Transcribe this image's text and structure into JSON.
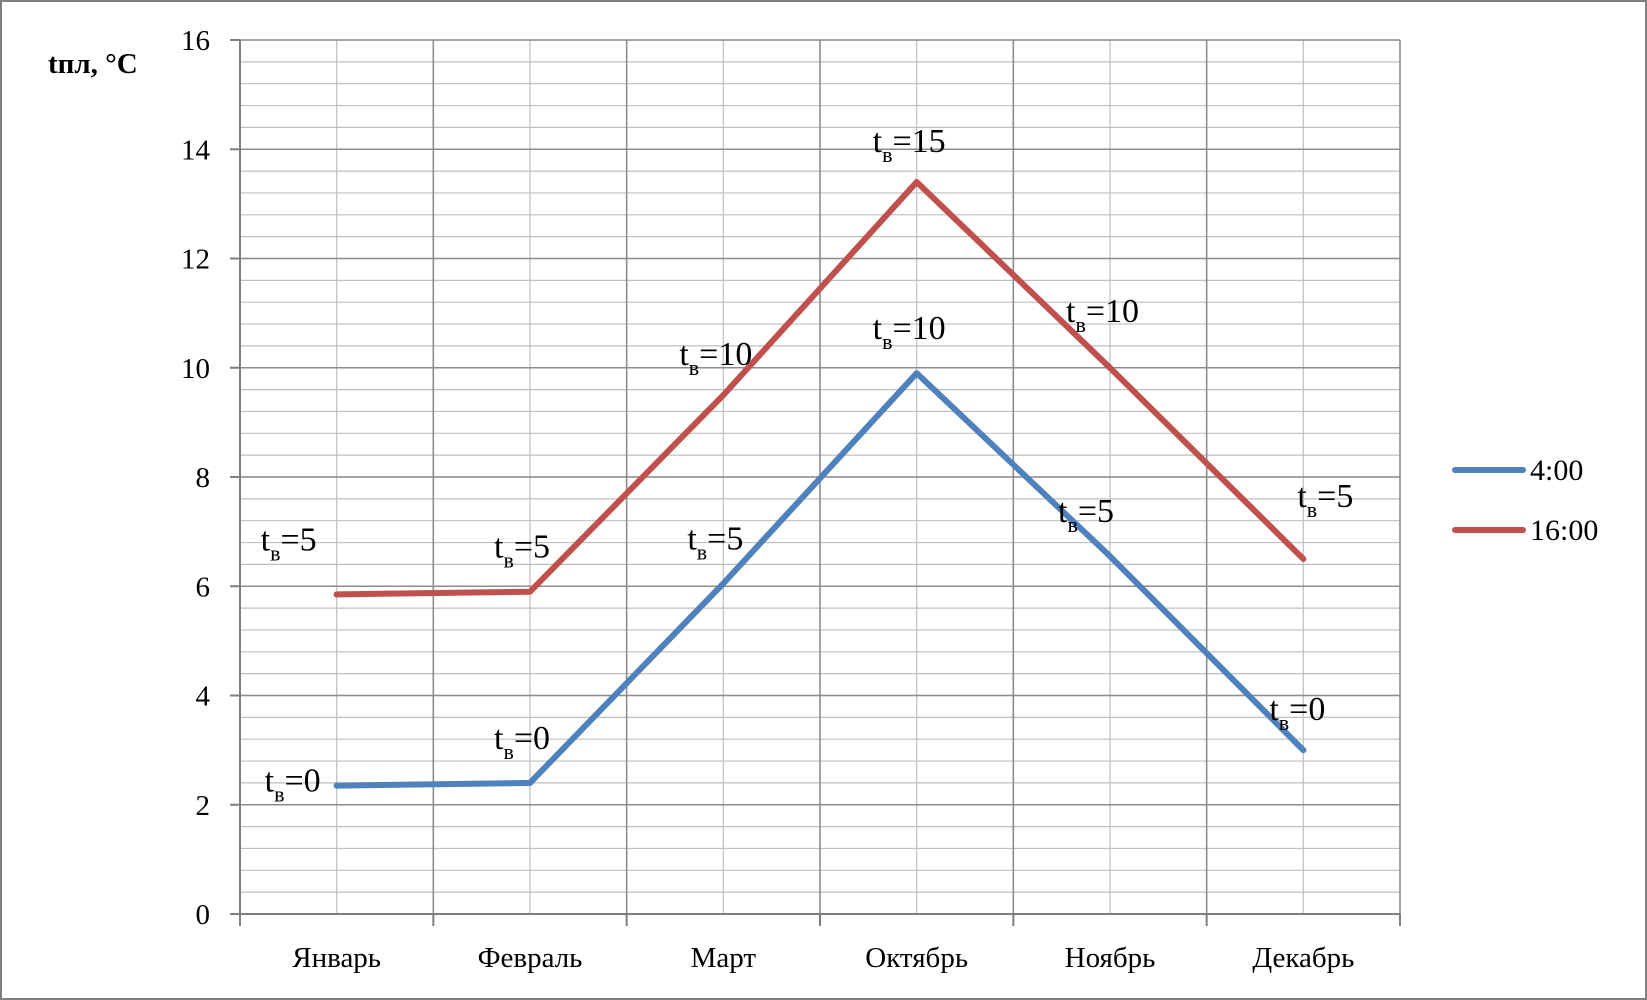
{
  "chart_data": {
    "type": "line",
    "ylabel": "tпл, °C",
    "xlabel": "",
    "title": "",
    "categories": [
      "Январь",
      "Февраль",
      "Март",
      "Октябрь",
      "Ноябрь",
      "Декабрь"
    ],
    "ylim": [
      0,
      16
    ],
    "ymajor_step": 2,
    "yminor_step": 0.4,
    "grid": true,
    "legend_position": "right",
    "series": [
      {
        "name": "4:00",
        "color": "#4f81bd",
        "values": [
          2.35,
          2.4,
          6.05,
          9.9,
          6.55,
          3.0
        ],
        "annotations": [
          {
            "base": "t",
            "sub": "в",
            "rest": "=0"
          },
          {
            "base": "t",
            "sub": "в",
            "rest": "=0"
          },
          {
            "base": "t",
            "sub": "в",
            "rest": "=5"
          },
          {
            "base": "t",
            "sub": "в",
            "rest": "=10"
          },
          {
            "base": "t",
            "sub": "в",
            "rest": "=5"
          },
          {
            "base": "t",
            "sub": "в",
            "rest": "=0"
          }
        ]
      },
      {
        "name": "16:00",
        "color": "#c0504d",
        "values": [
          5.85,
          5.9,
          9.5,
          13.4,
          10.0,
          6.5
        ],
        "annotations": [
          {
            "base": "t",
            "sub": "в",
            "rest": "=5"
          },
          {
            "base": "t",
            "sub": "в",
            "rest": "=5"
          },
          {
            "base": "t",
            "sub": "в",
            "rest": "=10"
          },
          {
            "base": "t",
            "sub": "в",
            "rest": "=15"
          },
          {
            "base": "t",
            "sub": "в",
            "rest": "=10"
          },
          {
            "base": "t",
            "sub": "в",
            "rest": "=5"
          }
        ]
      }
    ]
  }
}
